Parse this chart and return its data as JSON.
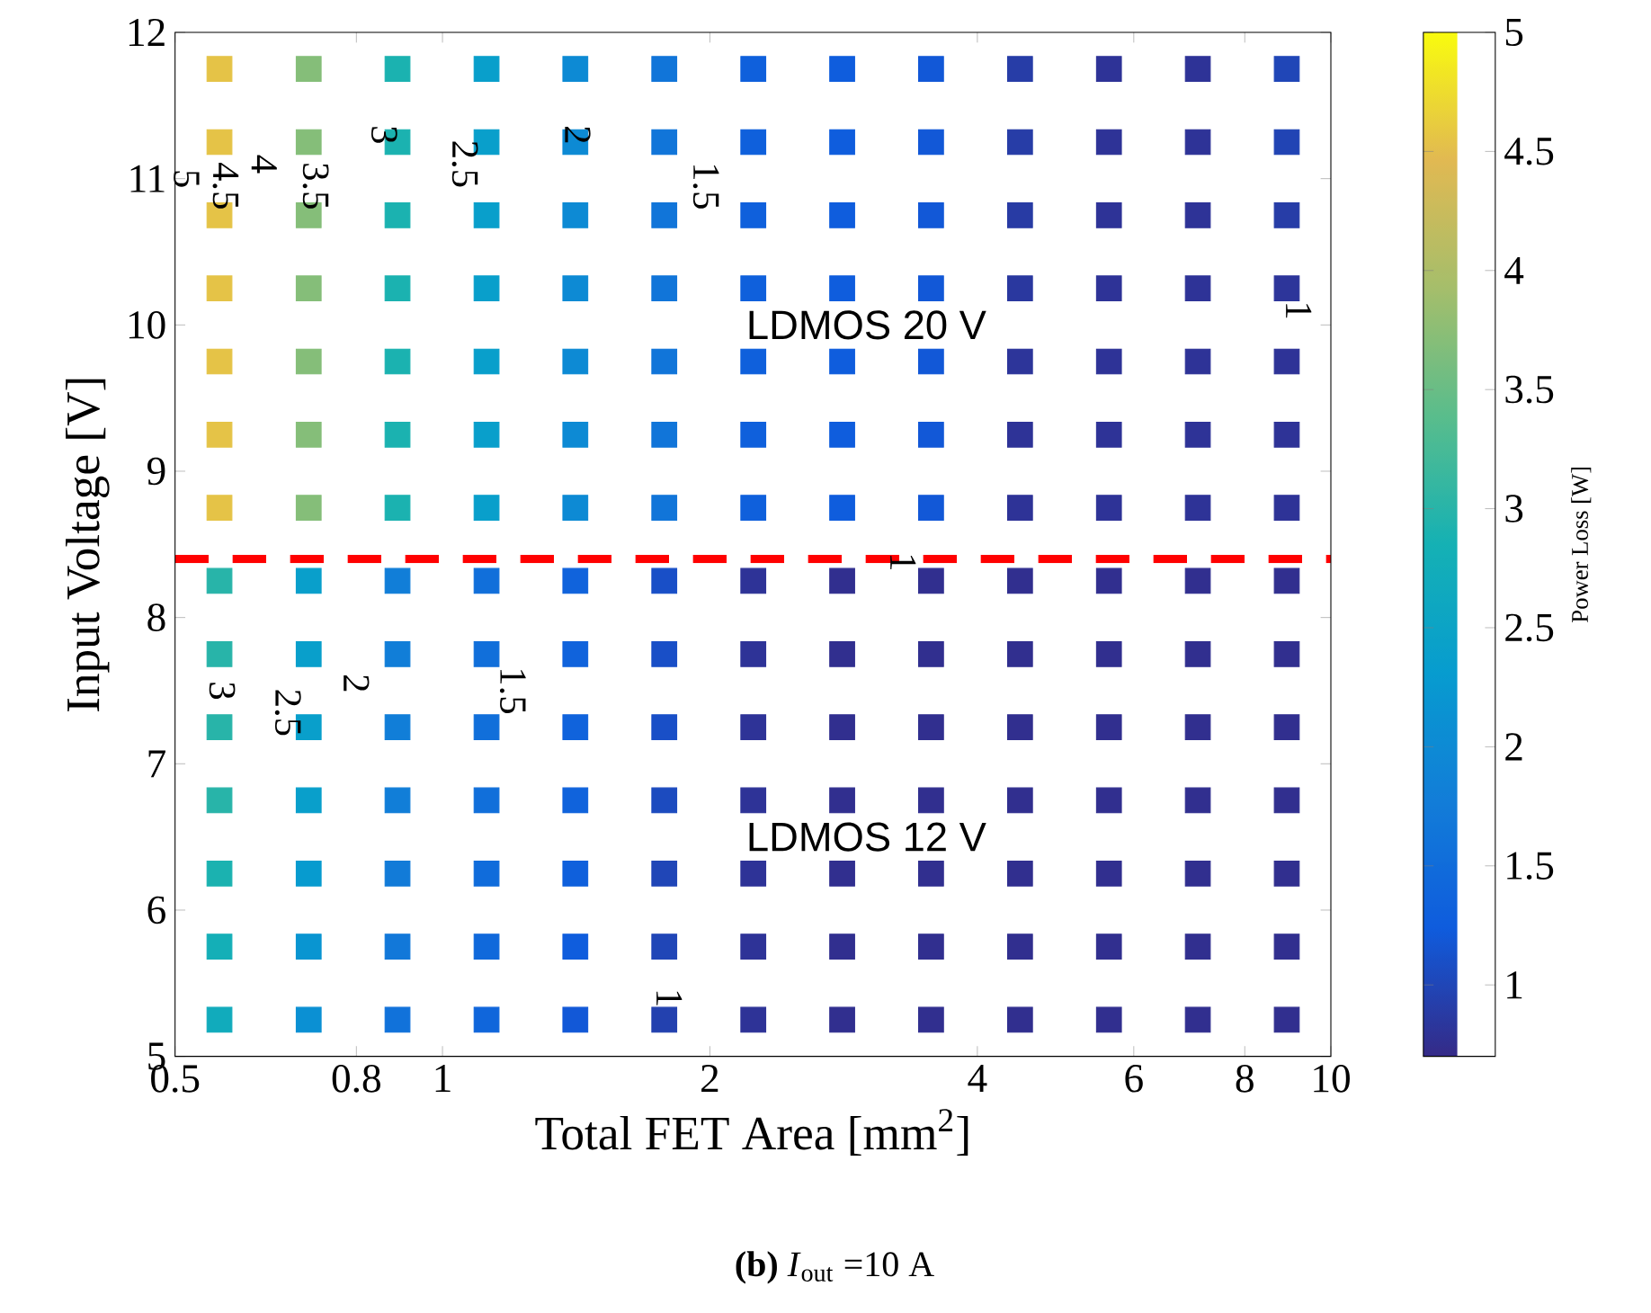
{
  "chart_data": {
    "type": "scatter",
    "marker": "square",
    "xlabel": "Total FET Area [mm$^{2}$]",
    "ylabel": "Input Voltage [V]",
    "clabel": "Power Loss [W]",
    "x": [
      0.561,
      0.707,
      0.89,
      1.121,
      1.411,
      1.777,
      2.238,
      2.818,
      3.548,
      4.468,
      5.626,
      7.084,
      8.92,
      0.561,
      0.707,
      0.89,
      1.121,
      1.411,
      1.777,
      2.238,
      2.818,
      3.548,
      4.468,
      5.626,
      7.084,
      8.92,
      0.561,
      0.707,
      0.89,
      1.121,
      1.411,
      1.777,
      2.238,
      2.818,
      3.548,
      4.468,
      5.626,
      7.084,
      8.92,
      0.561,
      0.707,
      0.89,
      1.121,
      1.411,
      1.777,
      2.238,
      2.818,
      3.548,
      4.468,
      5.626,
      7.084,
      8.92,
      0.561,
      0.707,
      0.89,
      1.121,
      1.411,
      1.777,
      2.238,
      2.818,
      3.548,
      4.468,
      5.626,
      7.084,
      8.92,
      0.561,
      0.707,
      0.89,
      1.121,
      1.411,
      1.777,
      2.238,
      2.818,
      3.548,
      4.468,
      5.626,
      7.084,
      8.92,
      0.561,
      0.707,
      0.89,
      1.121,
      1.411,
      1.777,
      2.238,
      2.818,
      3.548,
      4.468,
      5.626,
      7.084,
      8.92,
      0.561,
      0.707,
      0.89,
      1.121,
      1.411,
      1.777,
      2.238,
      2.818,
      3.548,
      4.468,
      5.626,
      7.084,
      8.92,
      0.561,
      0.707,
      0.89,
      1.121,
      1.411,
      1.777,
      2.238,
      2.818,
      3.548,
      4.468,
      5.626,
      7.084,
      8.92,
      0.561,
      0.707,
      0.89,
      1.121,
      1.411,
      1.777,
      2.238,
      2.818,
      3.548,
      4.468,
      5.626,
      7.084,
      8.92,
      0.561,
      0.707,
      0.89,
      1.121,
      1.411,
      1.777,
      2.238,
      2.818,
      3.548,
      4.468,
      5.626,
      7.084,
      8.92,
      0.561,
      0.707,
      0.89,
      1.121,
      1.411,
      1.777,
      2.238,
      2.818,
      3.548,
      4.468,
      5.626,
      7.084,
      8.92,
      0.561,
      0.707,
      0.89,
      1.121,
      1.411,
      1.777,
      2.238,
      2.818,
      3.548,
      4.468,
      5.626,
      7.084,
      8.92,
      0.561,
      0.707,
      0.89,
      1.121,
      1.411,
      1.777,
      2.238,
      2.818,
      3.548,
      4.468,
      5.626,
      7.084,
      8.92
    ],
    "values": [
      11.75,
      11.75,
      11.75,
      11.75,
      11.75,
      11.75,
      11.75,
      11.75,
      11.75,
      11.75,
      11.75,
      11.75,
      11.75,
      11.25,
      11.25,
      11.25,
      11.25,
      11.25,
      11.25,
      11.25,
      11.25,
      11.25,
      11.25,
      11.25,
      11.25,
      11.25,
      10.75,
      10.75,
      10.75,
      10.75,
      10.75,
      10.75,
      10.75,
      10.75,
      10.75,
      10.75,
      10.75,
      10.75,
      10.75,
      10.25,
      10.25,
      10.25,
      10.25,
      10.25,
      10.25,
      10.25,
      10.25,
      10.25,
      10.25,
      10.25,
      10.25,
      10.25,
      9.75,
      9.75,
      9.75,
      9.75,
      9.75,
      9.75,
      9.75,
      9.75,
      9.75,
      9.75,
      9.75,
      9.75,
      9.75,
      9.25,
      9.25,
      9.25,
      9.25,
      9.25,
      9.25,
      9.25,
      9.25,
      9.25,
      9.25,
      9.25,
      9.25,
      9.25,
      8.75,
      8.75,
      8.75,
      8.75,
      8.75,
      8.75,
      8.75,
      8.75,
      8.75,
      8.75,
      8.75,
      8.75,
      8.75,
      8.25,
      8.25,
      8.25,
      8.25,
      8.25,
      8.25,
      8.25,
      8.25,
      8.25,
      8.25,
      8.25,
      8.25,
      8.25,
      7.75,
      7.75,
      7.75,
      7.75,
      7.75,
      7.75,
      7.75,
      7.75,
      7.75,
      7.75,
      7.75,
      7.75,
      7.75,
      7.25,
      7.25,
      7.25,
      7.25,
      7.25,
      7.25,
      7.25,
      7.25,
      7.25,
      7.25,
      7.25,
      7.25,
      7.25,
      6.75,
      6.75,
      6.75,
      6.75,
      6.75,
      6.75,
      6.75,
      6.75,
      6.75,
      6.75,
      6.75,
      6.75,
      6.75,
      6.25,
      6.25,
      6.25,
      6.25,
      6.25,
      6.25,
      6.25,
      6.25,
      6.25,
      6.25,
      6.25,
      6.25,
      6.25,
      5.75,
      5.75,
      5.75,
      5.75,
      5.75,
      5.75,
      5.75,
      5.75,
      5.75,
      5.75,
      5.75,
      5.75,
      5.75,
      5.25,
      5.25,
      5.25,
      5.25,
      5.25,
      5.25,
      5.25,
      5.25,
      5.25,
      5.25,
      5.25,
      5.25,
      5.25
    ],
    "cvalues": [
      4.55,
      3.7,
      2.9,
      2.4,
      2.0,
      1.65,
      1.3,
      1.25,
      1.2,
      0.9,
      0.8,
      0.8,
      1.0,
      4.55,
      3.7,
      2.9,
      2.4,
      2.0,
      1.65,
      1.3,
      1.25,
      1.2,
      0.9,
      0.8,
      0.8,
      0.98,
      4.55,
      3.7,
      2.9,
      2.4,
      2.0,
      1.65,
      1.3,
      1.25,
      1.2,
      0.88,
      0.8,
      0.8,
      0.9,
      4.55,
      3.7,
      2.9,
      2.4,
      2.0,
      1.65,
      1.3,
      1.25,
      1.2,
      0.85,
      0.8,
      0.8,
      0.82,
      4.55,
      3.7,
      2.9,
      2.4,
      2.0,
      1.65,
      1.3,
      1.25,
      1.2,
      0.82,
      0.8,
      0.8,
      0.8,
      4.55,
      3.7,
      2.9,
      2.4,
      2.0,
      1.65,
      1.3,
      1.25,
      1.2,
      0.8,
      0.8,
      0.8,
      0.8,
      4.55,
      3.7,
      2.9,
      2.4,
      2.0,
      1.65,
      1.3,
      1.25,
      1.2,
      0.8,
      0.8,
      0.8,
      0.8,
      3.0,
      2.4,
      1.8,
      1.55,
      1.35,
      1.1,
      0.8,
      0.75,
      0.75,
      0.75,
      0.75,
      0.75,
      0.75,
      3.0,
      2.4,
      1.8,
      1.55,
      1.35,
      1.1,
      0.8,
      0.75,
      0.75,
      0.75,
      0.75,
      0.75,
      0.75,
      3.0,
      2.4,
      1.8,
      1.55,
      1.35,
      1.1,
      0.8,
      0.75,
      0.75,
      0.75,
      0.75,
      0.75,
      0.75,
      3.0,
      2.4,
      1.8,
      1.55,
      1.35,
      1.05,
      0.8,
      0.75,
      0.75,
      0.75,
      0.75,
      0.75,
      0.75,
      2.9,
      2.3,
      1.75,
      1.5,
      1.3,
      1.0,
      0.8,
      0.75,
      0.75,
      0.75,
      0.75,
      0.75,
      0.75,
      2.8,
      2.2,
      1.7,
      1.45,
      1.25,
      1.0,
      0.8,
      0.75,
      0.75,
      0.75,
      0.75,
      0.75,
      0.75,
      2.7,
      2.1,
      1.6,
      1.4,
      1.2,
      0.95,
      0.8,
      0.75,
      0.75,
      0.75,
      0.75,
      0.75,
      0.75
    ],
    "clim": [
      0.7,
      5
    ],
    "cticks": [
      1,
      1.5,
      2,
      2.5,
      3,
      3.5,
      4,
      4.5,
      5
    ],
    "log": "x",
    "xlim": [
      0.5,
      10
    ],
    "xticks": [
      0.5,
      0.8,
      1,
      2,
      4,
      6,
      8,
      10
    ],
    "ylim": [
      5,
      12
    ],
    "yticks": [
      5,
      6,
      7,
      8,
      9,
      10,
      11,
      12
    ],
    "ref_lines": [
      {
        "axis": "y",
        "value": 8.4,
        "color": "#ff0000",
        "line_style": "dashed"
      }
    ],
    "annotations": [
      "LDMOS 20 V",
      "LDMOS 12 V",
      "5",
      "4.5",
      "4",
      "3.5",
      "3",
      "2.5",
      "2",
      "1.5",
      "1",
      "1",
      "3",
      "2.5",
      "2",
      "1.5",
      "1",
      "**(b)** *I*$_{out}$ =10 A"
    ]
  }
}
